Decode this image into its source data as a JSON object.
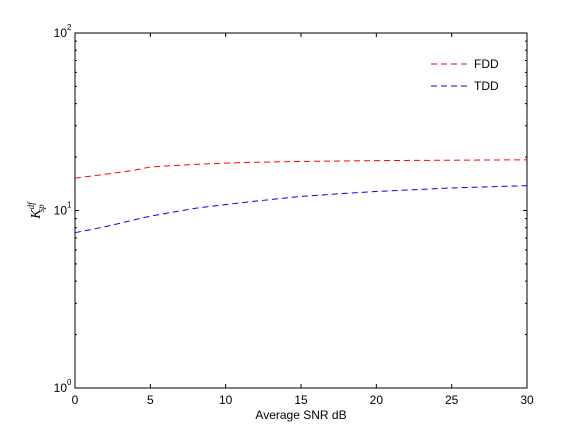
{
  "chart_data": {
    "type": "line",
    "xlabel": "Average SNR dB",
    "ylabel": {
      "base": "K",
      "superscript": "df",
      "subscript": "sp"
    },
    "xlim": [
      0,
      30
    ],
    "ylim": [
      1,
      100
    ],
    "yscale": "log",
    "x_ticks": [
      "0",
      "5",
      "10",
      "15",
      "20",
      "25",
      "30"
    ],
    "y_ticks": [
      {
        "base": "10",
        "exp": "0"
      },
      {
        "base": "10",
        "exp": "1"
      },
      {
        "base": "10",
        "exp": "2"
      }
    ],
    "grid": false,
    "legend_position": "top-right",
    "series": [
      {
        "name": "FDD",
        "color": "#ff0000",
        "style": "dashed",
        "x": [
          0,
          2,
          4,
          5,
          6,
          8,
          10,
          12,
          15,
          20,
          25,
          30
        ],
        "y": [
          15.2,
          16.0,
          16.9,
          17.6,
          17.8,
          18.2,
          18.5,
          18.7,
          18.9,
          19.1,
          19.2,
          19.3
        ]
      },
      {
        "name": "TDD",
        "color": "#0000ff",
        "style": "dashed",
        "x": [
          0,
          2,
          5,
          8,
          10,
          12,
          15,
          18,
          20,
          25,
          30
        ],
        "y": [
          7.5,
          8.1,
          9.3,
          10.3,
          10.8,
          11.3,
          12.0,
          12.5,
          12.8,
          13.4,
          13.8
        ]
      }
    ]
  }
}
